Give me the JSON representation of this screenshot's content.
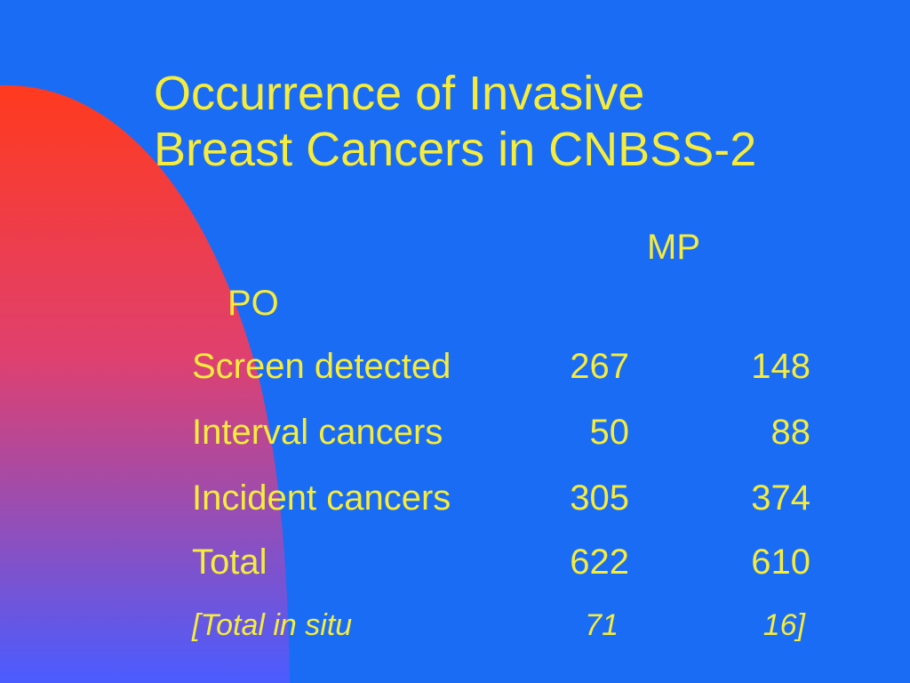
{
  "slide": {
    "title_line1": "Occurrence of Invasive",
    "title_line2": "Breast Cancers in CNBSS-2",
    "col_header_mp": "MP",
    "col_header_po": "PO",
    "rows": [
      {
        "label": "Screen detected",
        "mp": "267",
        "po": "148"
      },
      {
        "label": "Interval cancers",
        "mp": "50",
        "po": "88"
      },
      {
        "label": "Incident cancers",
        "mp": "305",
        "po": "374"
      },
      {
        "label": "Total",
        "mp": "622",
        "po": "610"
      }
    ],
    "footnote_row": {
      "label": "[Total in situ",
      "mp": "71",
      "po": "16]"
    }
  },
  "colors": {
    "background": "#1a6cf5",
    "text": "#f5ec3c",
    "gradient_top": "#ff3a1e",
    "gradient_bottom": "#4a5cff"
  }
}
